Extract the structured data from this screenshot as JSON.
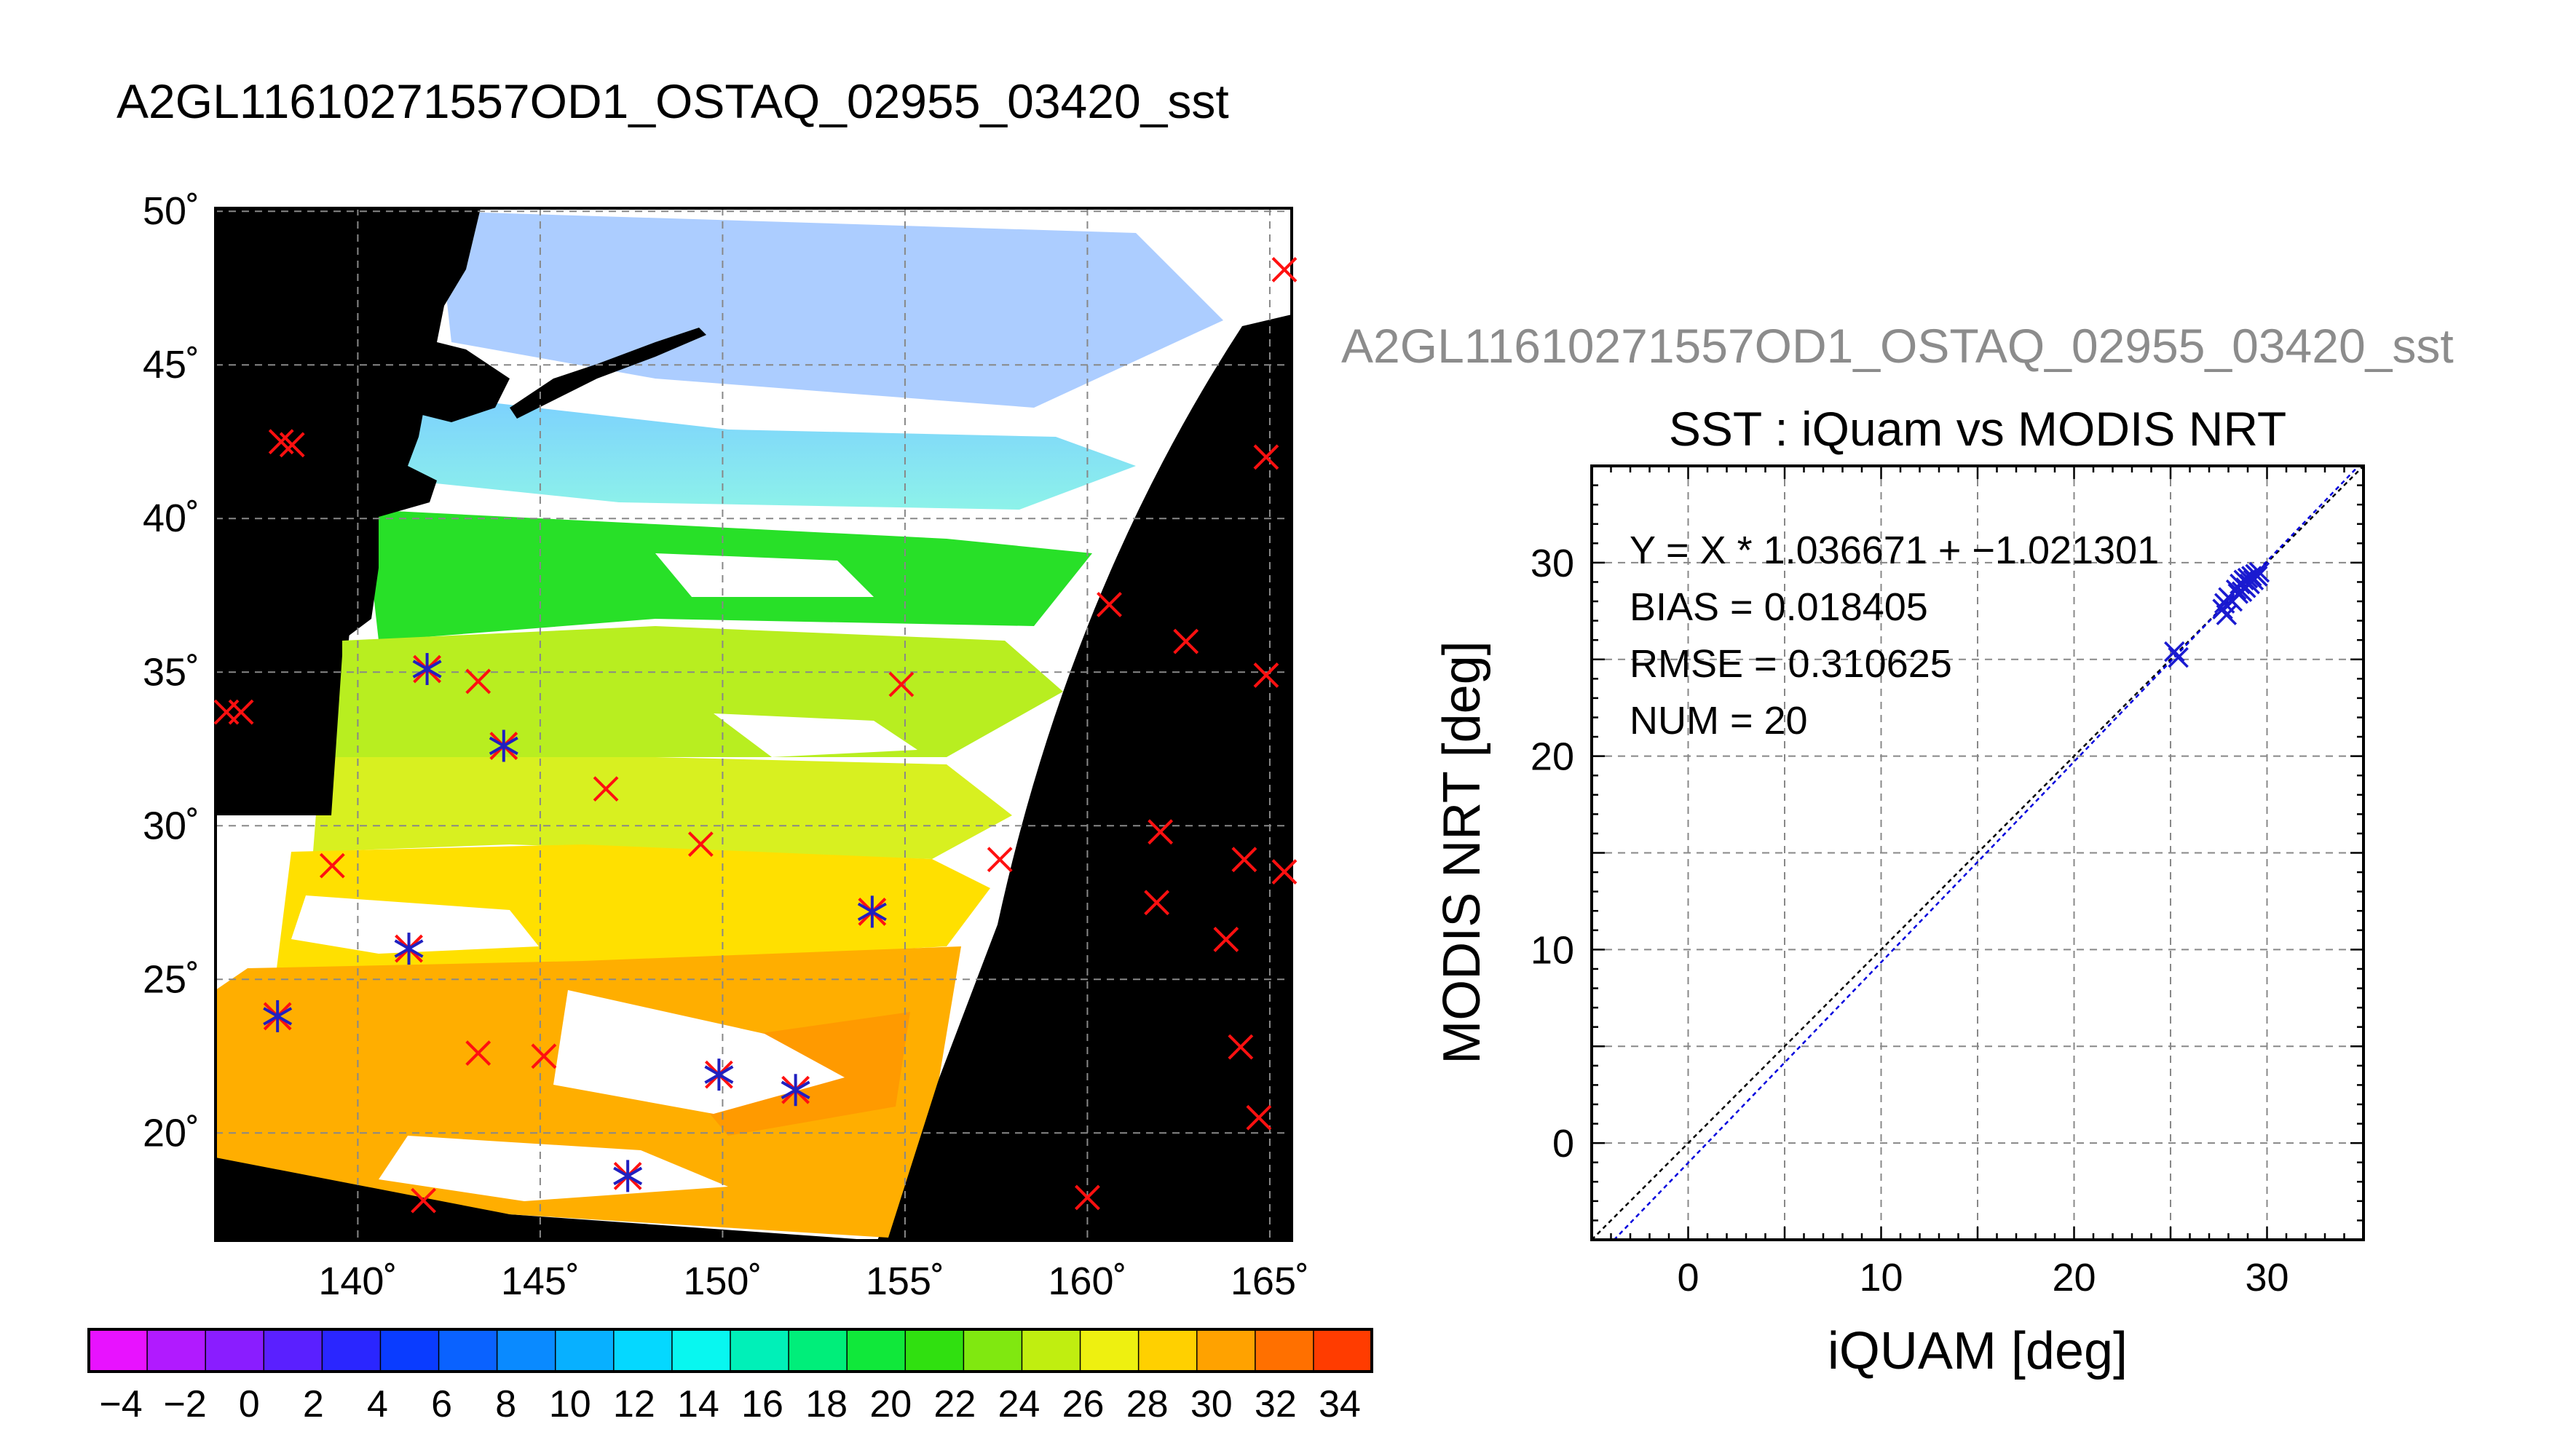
{
  "main_title": "A2GL11610271557OD1_OSTAQ_02955_03420_sst",
  "chart_data": [
    {
      "type": "map",
      "title": "A2GL11610271557OD1_OSTAQ_02955_03420_sst",
      "x_ticks": [
        {
          "v": 140,
          "label": "140˚"
        },
        {
          "v": 145,
          "label": "145˚"
        },
        {
          "v": 150,
          "label": "150˚"
        },
        {
          "v": 155,
          "label": "155˚"
        },
        {
          "v": 160,
          "label": "160˚"
        },
        {
          "v": 165,
          "label": "165˚"
        }
      ],
      "y_ticks": [
        {
          "v": 20,
          "label": "20˚"
        },
        {
          "v": 25,
          "label": "25˚"
        },
        {
          "v": 30,
          "label": "30˚"
        },
        {
          "v": 35,
          "label": "35˚"
        },
        {
          "v": 40,
          "label": "40˚"
        },
        {
          "v": 45,
          "label": "45˚"
        },
        {
          "v": 50,
          "label": "50˚"
        }
      ],
      "lon_range": [
        136.1,
        165.6
      ],
      "lat_range": [
        16.5,
        50.1
      ],
      "grid": true,
      "matchups_in_swath": [
        [
          141.9,
          35.1
        ],
        [
          144.0,
          32.6
        ],
        [
          141.4,
          26.0
        ],
        [
          137.8,
          23.8
        ],
        [
          149.9,
          21.9
        ],
        [
          152.0,
          21.4
        ],
        [
          154.1,
          27.2
        ],
        [
          147.4,
          18.6
        ]
      ],
      "iquam_only": [
        [
          137.9,
          42.5
        ],
        [
          138.2,
          42.4
        ],
        [
          136.4,
          33.7
        ],
        [
          136.8,
          33.7
        ],
        [
          143.3,
          34.7
        ],
        [
          146.8,
          31.2
        ],
        [
          149.4,
          29.4
        ],
        [
          139.3,
          28.7
        ],
        [
          154.9,
          34.6
        ],
        [
          143.3,
          22.6
        ],
        [
          145.1,
          22.5
        ],
        [
          141.8,
          17.8
        ],
        [
          160.6,
          37.2
        ],
        [
          162.7,
          36.0
        ],
        [
          164.9,
          34.9
        ],
        [
          164.9,
          42.0
        ],
        [
          165.4,
          48.1
        ],
        [
          157.6,
          28.9
        ],
        [
          162.0,
          29.8
        ],
        [
          161.9,
          27.5
        ],
        [
          164.3,
          28.9
        ],
        [
          165.4,
          28.5
        ],
        [
          163.8,
          26.3
        ],
        [
          164.2,
          22.8
        ],
        [
          164.7,
          20.5
        ],
        [
          160.0,
          17.9
        ]
      ]
    },
    {
      "type": "colorbar",
      "range": [
        -5,
        35
      ],
      "step": 2,
      "tick_labels": [
        "−4",
        "−2",
        "0",
        "2",
        "4",
        "6",
        "8",
        "10",
        "12",
        "14",
        "16",
        "18",
        "20",
        "22",
        "24",
        "26",
        "28",
        "30",
        "32",
        "34"
      ],
      "colors": [
        "#e812ff",
        "#b11aff",
        "#8a1dff",
        "#5a20ff",
        "#2a26ff",
        "#0a3cff",
        "#0a62ff",
        "#0a8aff",
        "#08b0ff",
        "#05d8ff",
        "#08f7f0",
        "#00f0b8",
        "#00ee7a",
        "#10e83a",
        "#30e010",
        "#80e810",
        "#c0ee10",
        "#eef010",
        "#ffd000",
        "#ffa200",
        "#ff7000",
        "#ff3c00"
      ]
    },
    {
      "type": "scatter",
      "figure_title": "A2GL11610271557OD1_OSTAQ_02955_03420_sst",
      "title": "SST : iQuam vs MODIS NRT",
      "xlabel": "iQUAM [deg]",
      "ylabel": "MODIS NRT [deg]",
      "xlim": [
        -5,
        35
      ],
      "ylim": [
        -5,
        35
      ],
      "x_ticks": [
        {
          "v": 0,
          "label": "0"
        },
        {
          "v": 10,
          "label": "10"
        },
        {
          "v": 20,
          "label": "20"
        },
        {
          "v": 30,
          "label": "30"
        }
      ],
      "y_ticks": [
        {
          "v": 0,
          "label": "0"
        },
        {
          "v": 10,
          "label": "10"
        },
        {
          "v": 20,
          "label": "20"
        },
        {
          "v": 30,
          "label": "30"
        }
      ],
      "grid": true,
      "stats": [
        "Y = X * 1.036671 + −1.021301",
        "BIAS = 0.018405",
        "RMSE = 0.310625",
        "NUM = 20"
      ],
      "fit": {
        "slope": 1.036671,
        "intercept": -1.021301,
        "color": "#0000dd"
      },
      "one_to_one_color": "#000000",
      "points": [
        [
          25.2,
          25.4
        ],
        [
          25.4,
          25.1
        ],
        [
          27.7,
          27.6
        ],
        [
          27.8,
          27.9
        ],
        [
          27.9,
          27.3
        ],
        [
          28.0,
          28.2
        ],
        [
          28.2,
          28.0
        ],
        [
          28.4,
          28.6
        ],
        [
          28.5,
          28.4
        ],
        [
          28.6,
          28.9
        ],
        [
          28.7,
          28.5
        ],
        [
          28.8,
          29.1
        ],
        [
          28.9,
          28.7
        ],
        [
          29.0,
          29.2
        ],
        [
          29.1,
          28.9
        ],
        [
          29.2,
          29.3
        ],
        [
          29.3,
          29.1
        ],
        [
          29.4,
          29.4
        ],
        [
          29.5,
          29.3
        ],
        [
          29.6,
          29.5
        ]
      ]
    }
  ]
}
